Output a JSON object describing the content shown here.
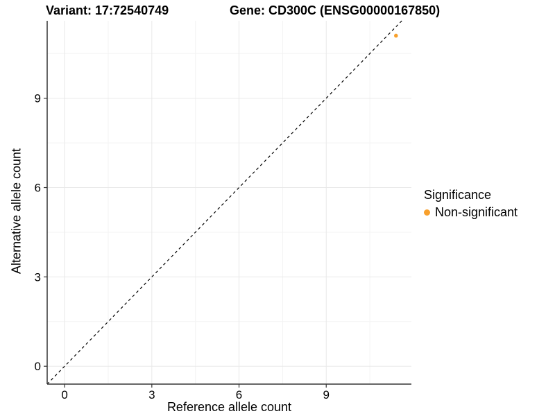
{
  "chart_data": {
    "type": "scatter",
    "title_left": "Variant: 17:72540749",
    "title_right": "Gene: CD300C (ENSG00000167850)",
    "xlabel": "Reference allele count",
    "ylabel": "Alternative allele count",
    "xticks": [
      0,
      3,
      6,
      9
    ],
    "yticks": [
      0,
      3,
      6,
      9
    ],
    "xlim": [
      -0.6,
      11.93
    ],
    "ylim": [
      -0.6,
      11.6
    ],
    "grid": "major and minor gridlines, light gray on white background",
    "identity_line": {
      "slope": 1,
      "intercept": 0,
      "style": "dashed",
      "color": "#000000"
    },
    "series": [
      {
        "name": "Non-significant",
        "color": "#F8A02C",
        "marker": "circle",
        "points": [
          [
            11.4,
            11.1
          ]
        ]
      }
    ],
    "legend": {
      "title": "Significance",
      "position": "right",
      "items": [
        {
          "label": "Non-significant",
          "color": "#F8A02C"
        }
      ]
    },
    "colors": {
      "axis": "#333333",
      "tick": "#333333",
      "grid_major": "#E8E8E8",
      "grid_minor": "#F3F3F3",
      "background": "#FFFFFF"
    }
  }
}
